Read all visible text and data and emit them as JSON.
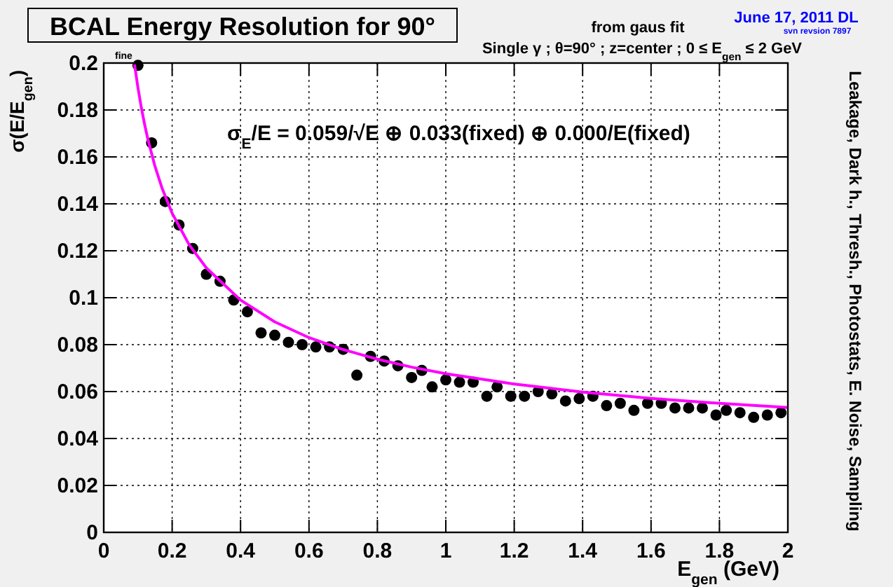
{
  "chart_data": {
    "type": "scatter",
    "title": "BCAL Energy Resolution for 90°",
    "xlabel": "E$_{gen}$ (GeV)",
    "ylabel": "σ(E/E$_{gen}$)",
    "annotations": [
      "from gaus fit",
      "Single γ ; θ=90°  ; z=center ;  0 ≤ E$_{gen}$ ≤ 2 GeV",
      "June 17, 2011 DL",
      "svn revsion 7897",
      "fine",
      "σ$_{E}$/E = 0.059/√E ⊕ 0.033(fixed) ⊕ 0.000/E(fixed)",
      "Leakage, Dark h., Thresh., Photostats, E. Noise, Sampling"
    ],
    "xlim": [
      0,
      2
    ],
    "ylim": [
      0,
      0.2
    ],
    "xticks": [
      0,
      0.2,
      0.4,
      0.6,
      0.8,
      1,
      1.2,
      1.4,
      1.6,
      1.8,
      2
    ],
    "yticks": [
      0,
      0.02,
      0.04,
      0.06,
      0.08,
      0.1,
      0.12,
      0.14,
      0.16,
      0.18,
      0.2
    ],
    "grid": true,
    "marker": "circle",
    "series": [
      {
        "type": "scatter",
        "color": "#000000",
        "x": [
          0.1,
          0.14,
          0.18,
          0.22,
          0.26,
          0.3,
          0.34,
          0.38,
          0.42,
          0.46,
          0.5,
          0.54,
          0.58,
          0.62,
          0.66,
          0.7,
          0.74,
          0.78,
          0.82,
          0.86,
          0.9,
          0.93,
          0.96,
          1.0,
          1.04,
          1.08,
          1.12,
          1.15,
          1.19,
          1.23,
          1.27,
          1.31,
          1.35,
          1.39,
          1.43,
          1.47,
          1.51,
          1.55,
          1.59,
          1.63,
          1.67,
          1.71,
          1.75,
          1.79,
          1.82,
          1.86,
          1.9,
          1.94,
          1.98
        ],
        "values": [
          0.199,
          0.166,
          0.141,
          0.131,
          0.121,
          0.11,
          0.107,
          0.099,
          0.094,
          0.085,
          0.084,
          0.081,
          0.08,
          0.079,
          0.079,
          0.078,
          0.067,
          0.075,
          0.073,
          0.071,
          0.066,
          0.069,
          0.062,
          0.065,
          0.064,
          0.064,
          0.058,
          0.062,
          0.058,
          0.058,
          0.06,
          0.059,
          0.056,
          0.057,
          0.058,
          0.054,
          0.055,
          0.052,
          0.055,
          0.055,
          0.053,
          0.053,
          0.053,
          0.05,
          0.052,
          0.051,
          0.049,
          0.05,
          0.051
        ]
      },
      {
        "type": "line",
        "color": "#ff00ff",
        "line_style": "solid",
        "marker": "none",
        "x": [
          0.09,
          0.1,
          0.11,
          0.12,
          0.13,
          0.15,
          0.17,
          0.2,
          0.25,
          0.3,
          0.4,
          0.5,
          0.6,
          0.7,
          0.8,
          0.9,
          1.0,
          1.2,
          1.4,
          1.6,
          1.8,
          2.0
        ],
        "values": [
          0.1994,
          0.1895,
          0.1809,
          0.1735,
          0.1669,
          0.1559,
          0.1469,
          0.136,
          0.1225,
          0.1127,
          0.099,
          0.0897,
          0.083,
          0.0779,
          0.0738,
          0.0704,
          0.0676,
          0.0632,
          0.0598,
          0.0571,
          0.055,
          0.0532
        ]
      }
    ]
  }
}
